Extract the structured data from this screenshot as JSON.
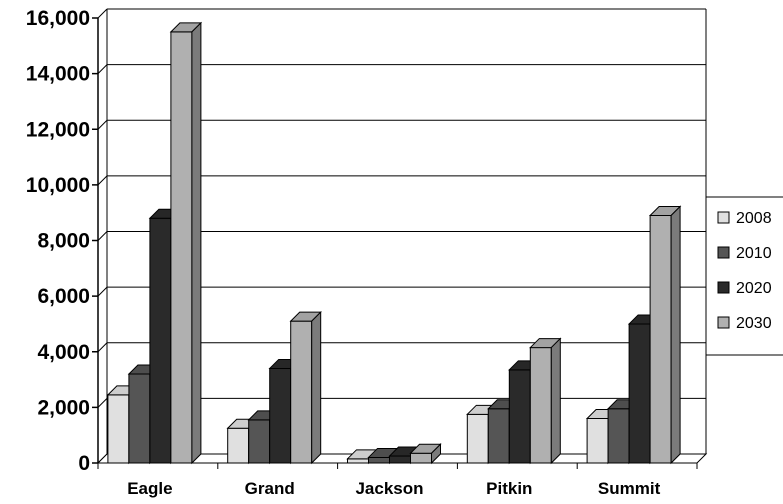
{
  "chart_data": {
    "type": "bar",
    "title": "",
    "xlabel": "",
    "ylabel": "",
    "categories": [
      "Eagle",
      "Grand",
      "Jackson",
      "Pitkin",
      "Summit"
    ],
    "series": [
      {
        "name": "2008",
        "color": "#e0e0e0",
        "values": [
          2450,
          1250,
          150,
          1750,
          1600
        ]
      },
      {
        "name": "2010",
        "color": "#555555",
        "values": [
          3200,
          1550,
          200,
          1950,
          1950
        ]
      },
      {
        "name": "2020",
        "color": "#2a2a2a",
        "values": [
          8800,
          3400,
          250,
          3350,
          5000
        ]
      },
      {
        "name": "2030",
        "color": "#b0b0b0",
        "values": [
          15500,
          5100,
          350,
          4150,
          8900
        ]
      }
    ],
    "ylim": [
      0,
      16000
    ],
    "yticks": [
      0,
      2000,
      4000,
      6000,
      8000,
      10000,
      12000,
      14000,
      16000
    ],
    "ytick_labels": [
      "0",
      "2,000",
      "4,000",
      "6,000",
      "8,000",
      "10,000",
      "12,000",
      "14,000",
      "16,000"
    ],
    "grid": true,
    "legend_position": "right"
  }
}
